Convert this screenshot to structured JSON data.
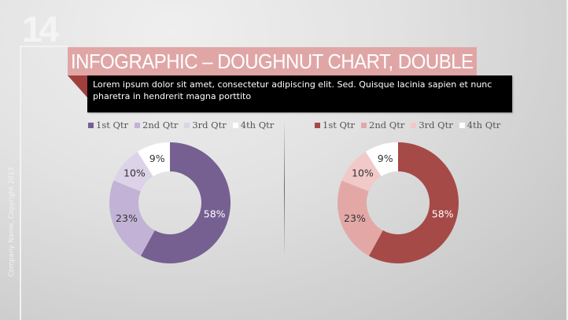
{
  "slide": {
    "number": "14",
    "title": "INFOGRAPHIC – DOUGHNUT CHART, DOUBLE",
    "description": "Lorem ipsum dolor sit amet, consectetur adipiscing elit. Sed. Quisque lacinia sapien et nunc pharetra in hendrerit magna porttito",
    "footer": "Company Name, Copyright 2013",
    "colors": {
      "title_bar": "#e0a6a6",
      "fold": "#a0403e",
      "desc_bg": "#000000"
    }
  },
  "chart_data": [
    {
      "type": "pie",
      "subtype": "doughnut",
      "title": "",
      "categories": [
        "1st Qtr",
        "2nd Qtr",
        "3rd Qtr",
        "4th Qtr"
      ],
      "values": [
        58,
        23,
        10,
        9
      ],
      "labels": [
        "58%",
        "23%",
        "10%",
        "9%"
      ],
      "colors": [
        "#765f91",
        "#c2b2d6",
        "#ddd3e8",
        "#ffffff"
      ],
      "legend_position": "top"
    },
    {
      "type": "pie",
      "subtype": "doughnut",
      "title": "",
      "categories": [
        "1st Qtr",
        "2nd Qtr",
        "3rd Qtr",
        "4th Qtr"
      ],
      "values": [
        58,
        23,
        10,
        9
      ],
      "labels": [
        "58%",
        "23%",
        "10%",
        "9%"
      ],
      "colors": [
        "#a64a47",
        "#e3a8a6",
        "#f0c9c8",
        "#ffffff"
      ],
      "legend_position": "top"
    }
  ]
}
